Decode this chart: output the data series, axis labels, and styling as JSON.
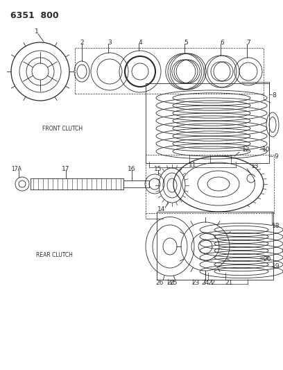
{
  "title": "6351  800",
  "bg_color": "#ffffff",
  "line_color": "#2a2a2a",
  "label_fontsize": 6.0,
  "front_clutch_label": "FRONT CLUTCH",
  "rear_clutch_label": "REAR CLUTCH"
}
